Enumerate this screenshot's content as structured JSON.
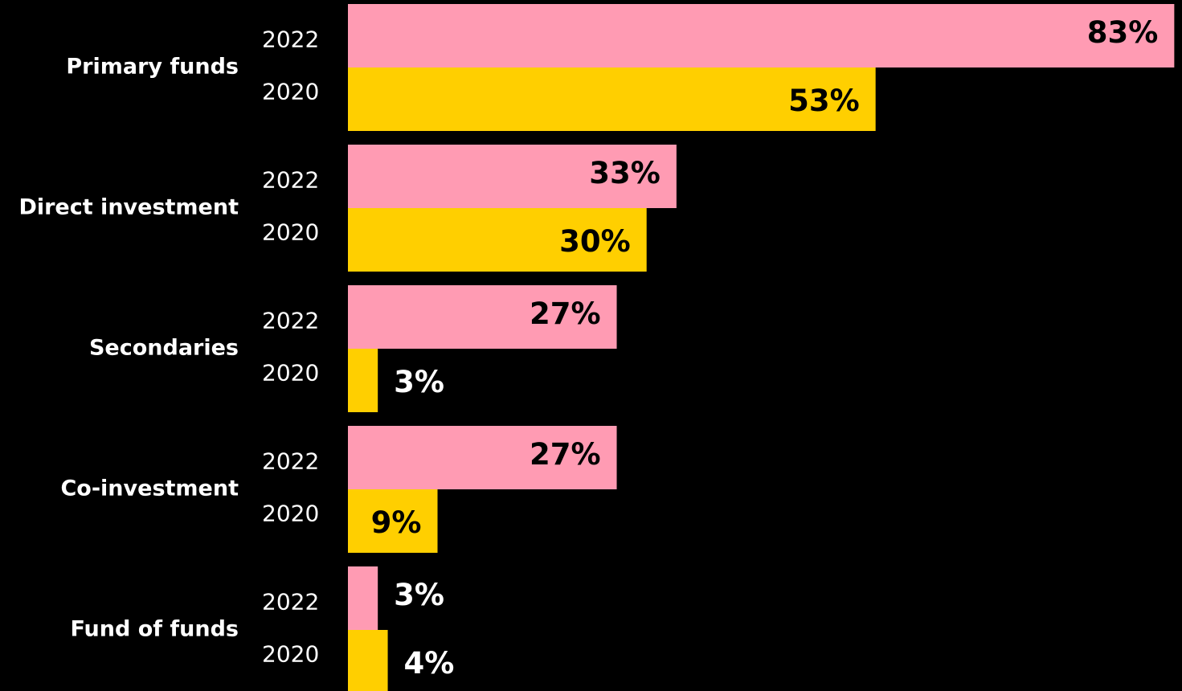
{
  "chart_data": {
    "type": "bar",
    "orientation": "horizontal",
    "categories": [
      "Primary funds",
      "Direct investment",
      "Secondaries",
      "Co-investment",
      "Fund of funds"
    ],
    "series": [
      {
        "name": "2022",
        "color": "#ff9bb3",
        "values": [
          83,
          33,
          27,
          27,
          3
        ],
        "value_labels": [
          "83%",
          "33%",
          "27%",
          "27%",
          "3%"
        ]
      },
      {
        "name": "2020",
        "color": "#ffcf00",
        "values": [
          53,
          30,
          3,
          9,
          4
        ],
        "value_labels": [
          "53%",
          "30%",
          "3%",
          "9%",
          "4%"
        ]
      }
    ]
  }
}
